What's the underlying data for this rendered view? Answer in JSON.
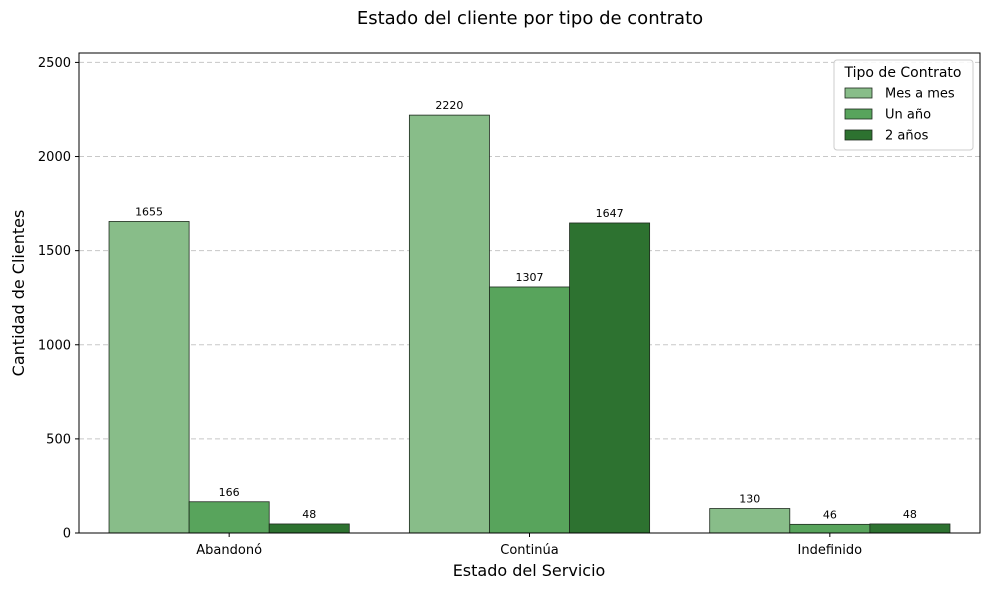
{
  "chart_data": {
    "type": "bar",
    "title": "Estado del cliente por tipo de contrato",
    "xlabel": "Estado del Servicio",
    "ylabel": "Cantidad de Clientes",
    "categories": [
      "Abandonó",
      "Continúa",
      "Indefinido"
    ],
    "series": [
      {
        "name": "Mes a mes",
        "values": [
          1655,
          2220,
          130
        ],
        "color": "#88bd89"
      },
      {
        "name": "Un año",
        "values": [
          166,
          1307,
          46
        ],
        "color": "#58a45c"
      },
      {
        "name": "2 años",
        "values": [
          48,
          1647,
          48
        ],
        "color": "#2d7230"
      }
    ],
    "ylim": [
      0,
      2550
    ],
    "yticks": [
      0,
      500,
      1000,
      1500,
      2000,
      2500
    ],
    "grid": "horizontal-dashed",
    "legend": {
      "title": "Tipo de Contrato",
      "placement": "top-right"
    }
  }
}
